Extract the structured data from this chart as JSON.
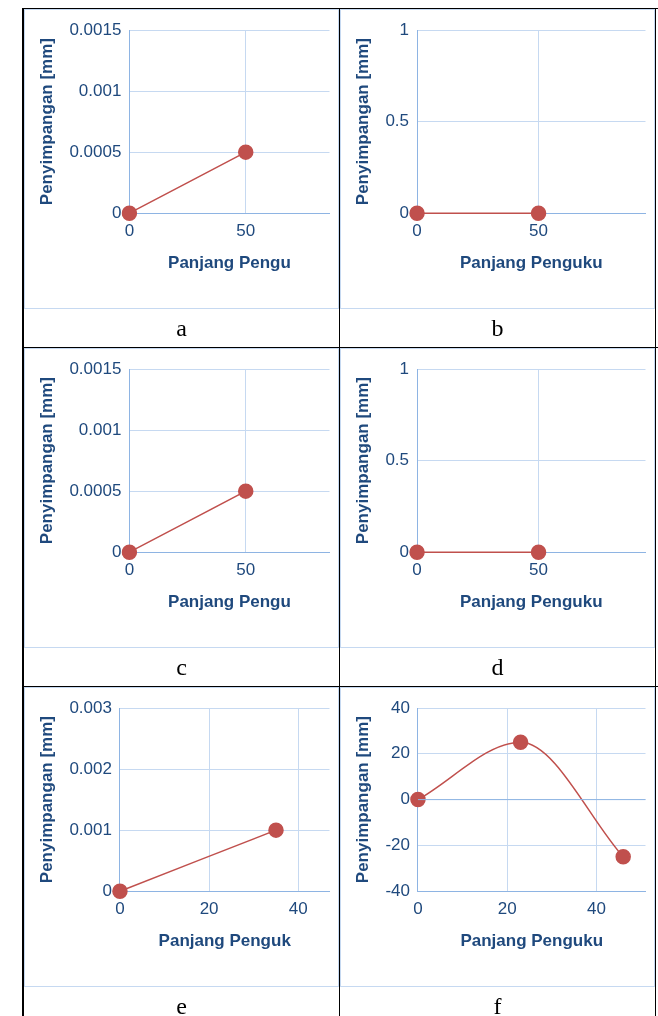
{
  "chart_data": [
    {
      "type": "line",
      "x": [
        0,
        50
      ],
      "values": [
        0,
        0.0005
      ],
      "color": "#c0504d",
      "xlim": [
        0,
        86
      ],
      "xticks": [
        0,
        50
      ],
      "ylim": [
        0,
        0.0015
      ],
      "yticks": [
        0,
        0.0005,
        0.001,
        0.0015
      ],
      "xlabel": "Panjang Pengu",
      "ylabel": "Penyimpangan [mm]",
      "grid": true,
      "marker": "circle",
      "annotations": [
        "a"
      ]
    },
    {
      "type": "line",
      "x": [
        0,
        50
      ],
      "values": [
        0,
        0
      ],
      "color": "#c0504d",
      "xlim": [
        0,
        94
      ],
      "xticks": [
        0,
        50
      ],
      "ylim": [
        0,
        1
      ],
      "yticks": [
        0,
        0.5,
        1
      ],
      "xlabel": "Panjang Penguku",
      "ylabel": "Penyimpangan [mm]",
      "grid": true,
      "marker": "circle",
      "annotations": [
        "b"
      ]
    },
    {
      "type": "line",
      "x": [
        0,
        50
      ],
      "values": [
        0,
        0.0005
      ],
      "color": "#c0504d",
      "xlim": [
        0,
        86
      ],
      "xticks": [
        0,
        50
      ],
      "ylim": [
        0,
        0.0015
      ],
      "yticks": [
        0,
        0.0005,
        0.001,
        0.0015
      ],
      "xlabel": "Panjang Pengu",
      "ylabel": "Penyimpangan [mm]",
      "grid": true,
      "marker": "circle",
      "annotations": [
        "c"
      ]
    },
    {
      "type": "line",
      "x": [
        0,
        50
      ],
      "values": [
        0,
        0
      ],
      "color": "#c0504d",
      "xlim": [
        0,
        94
      ],
      "xticks": [
        0,
        50
      ],
      "ylim": [
        0,
        1
      ],
      "yticks": [
        0,
        0.5,
        1
      ],
      "xlabel": "Panjang Penguku",
      "ylabel": "Penyimpangan [mm]",
      "grid": true,
      "marker": "circle",
      "annotations": [
        "d"
      ]
    },
    {
      "type": "line",
      "x": [
        0,
        35
      ],
      "values": [
        0,
        0.001
      ],
      "color": "#c0504d",
      "xlim": [
        0,
        47
      ],
      "xticks": [
        0,
        20,
        40
      ],
      "ylim": [
        0,
        0.003
      ],
      "yticks": [
        0,
        0.001,
        0.002,
        0.003
      ],
      "xlabel": "Panjang Penguk",
      "ylabel": "Penyimpangan [mm]",
      "grid": true,
      "marker": "circle",
      "annotations": [
        "e"
      ]
    },
    {
      "type": "line",
      "x": [
        0,
        23,
        46
      ],
      "values": [
        0,
        25,
        -25
      ],
      "color": "#c0504d",
      "xlim": [
        0,
        51
      ],
      "xticks": [
        0,
        20,
        40
      ],
      "ylim": [
        -40,
        40
      ],
      "yticks": [
        -40,
        -20,
        0,
        20,
        40
      ],
      "xlabel": "Panjang Penguku",
      "ylabel": "Penyimpangan [mm]",
      "grid": true,
      "marker": "circle",
      "ref_lines": [
        {
          "axis": "y",
          "value": 0,
          "color": "#8eb4e3"
        }
      ],
      "annotations": [
        "f"
      ]
    }
  ]
}
